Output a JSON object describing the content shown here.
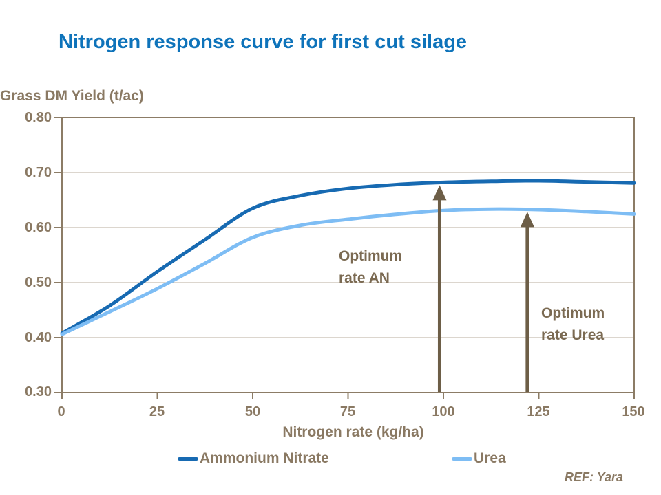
{
  "title": "Nitrogen response curve for first cut silage",
  "footer": {
    "ref": "REF: Yara"
  },
  "colors": {
    "background": "#ffffff",
    "title": "#0e73ba",
    "axis_text": "#8a7963",
    "annotation_text": "#7b6a52",
    "arrow": "#6d5e47",
    "frame": "#8c7c66",
    "gridline": "#b9ac9c",
    "series_ammonium_nitrate": "#176ab2",
    "series_urea": "#7ebdf4"
  },
  "chart_data": {
    "type": "line",
    "title": "Nitrogen response curve for first cut silage",
    "xlabel": "Nitrogen rate (kg/ha)",
    "ylabel": "Grass DM Yield (t/ac)",
    "xlim": [
      0,
      150
    ],
    "ylim": [
      0.3,
      0.8
    ],
    "xticks": [
      0,
      25,
      50,
      75,
      100,
      125,
      150
    ],
    "yticks": [
      0.3,
      0.4,
      0.5,
      0.6,
      0.7,
      0.8
    ],
    "xtick_labels": [
      "0",
      "25",
      "50",
      "75",
      "100",
      "125",
      "150"
    ],
    "ytick_labels": [
      "0.30",
      "0.40",
      "0.50",
      "0.60",
      "0.70",
      "0.80"
    ],
    "grid": "horizontal",
    "legend_position": "bottom",
    "series": [
      {
        "name": "Ammonium Nitrate",
        "color": "#176ab2",
        "points": [
          [
            0,
            0.408
          ],
          [
            12.5,
            0.458
          ],
          [
            25,
            0.52
          ],
          [
            37.5,
            0.578
          ],
          [
            50,
            0.635
          ],
          [
            62.5,
            0.658
          ],
          [
            75,
            0.671
          ],
          [
            87.5,
            0.678
          ],
          [
            100,
            0.682
          ],
          [
            112.5,
            0.684
          ],
          [
            125,
            0.685
          ],
          [
            137.5,
            0.683
          ],
          [
            150,
            0.681
          ]
        ]
      },
      {
        "name": "Urea",
        "color": "#7ebdf4",
        "points": [
          [
            0,
            0.406
          ],
          [
            12.5,
            0.447
          ],
          [
            25,
            0.489
          ],
          [
            37.5,
            0.535
          ],
          [
            50,
            0.582
          ],
          [
            62.5,
            0.604
          ],
          [
            75,
            0.615
          ],
          [
            87.5,
            0.624
          ],
          [
            100,
            0.631
          ],
          [
            112.5,
            0.6335
          ],
          [
            125,
            0.6325
          ],
          [
            137.5,
            0.629
          ],
          [
            150,
            0.6245
          ]
        ]
      }
    ],
    "annotations": [
      {
        "lines": [
          "Optimum",
          "rate AN"
        ],
        "arrow_x": 99,
        "arrow_tip_value": 0.677
      },
      {
        "lines": [
          "Optimum",
          "rate Urea"
        ],
        "arrow_x": 122,
        "arrow_tip_value": 0.6285
      }
    ]
  }
}
